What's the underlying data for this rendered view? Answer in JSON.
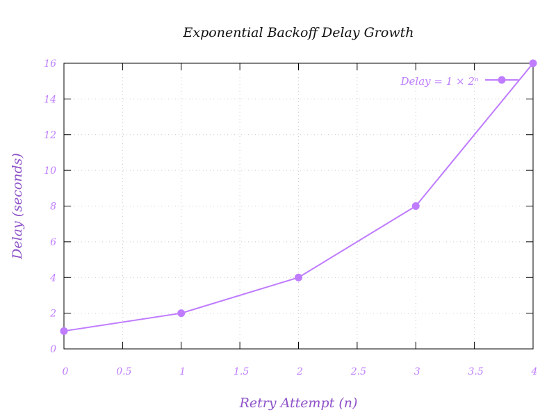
{
  "chart_data": {
    "type": "line",
    "title": "Exponential Backoff Delay Growth",
    "xlabel": "Retry Attempt (n)",
    "ylabel": "Delay (seconds)",
    "xlim": [
      0,
      4
    ],
    "ylim": [
      0,
      16
    ],
    "x_ticks": [
      "0",
      "0.5",
      "1",
      "1.5",
      "2",
      "2.5",
      "3",
      "3.5",
      "4"
    ],
    "y_ticks": [
      "0",
      "2",
      "4",
      "6",
      "8",
      "10",
      "12",
      "14",
      "16"
    ],
    "grid": true,
    "legend_position": "top-right",
    "series": [
      {
        "name": "Delay = 1 × 2ⁿ",
        "color": "#bf7cff",
        "x": [
          0,
          1,
          2,
          3,
          4
        ],
        "y": [
          1,
          2,
          4,
          8,
          16
        ]
      }
    ]
  }
}
